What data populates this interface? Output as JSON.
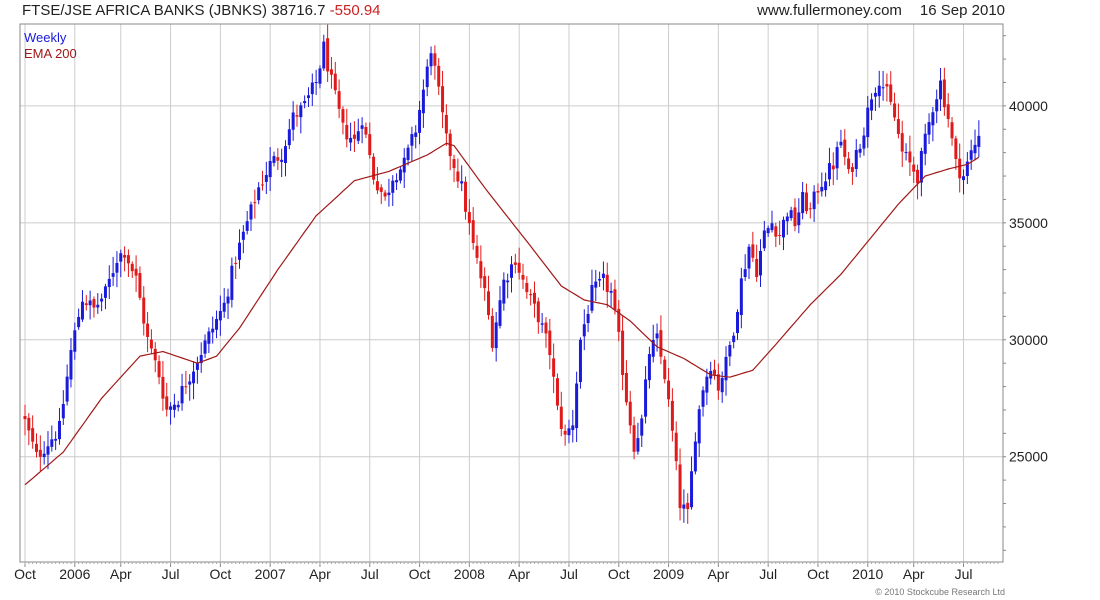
{
  "header": {
    "title": "FTSE/JSE AFRICA BANKS (JBNKS)",
    "last_value": "38716.7",
    "change": "-550.94",
    "site": "www.fullermoney.com",
    "date": "16 Sep 2010"
  },
  "copyright": "© 2010 Stockcube Research Ltd",
  "colors": {
    "up": "#1a1adb",
    "down": "#e01a1a",
    "ema": "#a01818",
    "grid": "#cccccc",
    "frame": "#888888",
    "legend_weekly": "#1a1adb",
    "legend_ema": "#a01818"
  },
  "chart_data": {
    "type": "candlestick",
    "frequency": "Weekly",
    "y_axis_position": "right",
    "ylim": [
      20500,
      43500
    ],
    "yticks": [
      25000,
      30000,
      35000,
      40000
    ],
    "ytick_labels": [
      "25000",
      "30000",
      "35000",
      "40000"
    ],
    "x_range_weeks": [
      0,
      254
    ],
    "xticks": [
      {
        "label": "Oct",
        "week": 0
      },
      {
        "label": "2006",
        "week": 13
      },
      {
        "label": "Apr",
        "week": 25
      },
      {
        "label": "Jul",
        "week": 38
      },
      {
        "label": "Oct",
        "week": 51
      },
      {
        "label": "2007",
        "week": 64
      },
      {
        "label": "Apr",
        "week": 77
      },
      {
        "label": "Jul",
        "week": 90
      },
      {
        "label": "Oct",
        "week": 103
      },
      {
        "label": "2008",
        "week": 116
      },
      {
        "label": "Apr",
        "week": 129
      },
      {
        "label": "Jul",
        "week": 142
      },
      {
        "label": "Oct",
        "week": 155
      },
      {
        "label": "2009",
        "week": 168
      },
      {
        "label": "Apr",
        "week": 181
      },
      {
        "label": "Jul",
        "week": 194
      },
      {
        "label": "Oct",
        "week": 207
      },
      {
        "label": "2010",
        "week": 220
      },
      {
        "label": "Apr",
        "week": 232
      },
      {
        "label": "Jul",
        "week": 245
      }
    ],
    "legend": [
      "Weekly",
      "EMA 200"
    ],
    "legend_position": "top-left",
    "grid": true,
    "close_anchors": [
      [
        0,
        26500
      ],
      [
        3,
        25000
      ],
      [
        6,
        25600
      ],
      [
        9,
        26200
      ],
      [
        12,
        29500
      ],
      [
        15,
        31800
      ],
      [
        18,
        31300
      ],
      [
        21,
        32000
      ],
      [
        24,
        33500
      ],
      [
        26,
        33800
      ],
      [
        29,
        32600
      ],
      [
        32,
        30000
      ],
      [
        35,
        28500
      ],
      [
        37,
        27000
      ],
      [
        40,
        27500
      ],
      [
        43,
        28500
      ],
      [
        46,
        29500
      ],
      [
        49,
        30500
      ],
      [
        52,
        31500
      ],
      [
        55,
        33500
      ],
      [
        58,
        35000
      ],
      [
        61,
        36500
      ],
      [
        64,
        37500
      ],
      [
        67,
        38000
      ],
      [
        70,
        39500
      ],
      [
        73,
        40000
      ],
      [
        76,
        41000
      ],
      [
        78,
        42500
      ],
      [
        80,
        41000
      ],
      [
        83,
        39000
      ],
      [
        86,
        38500
      ],
      [
        88,
        39500
      ],
      [
        91,
        37000
      ],
      [
        94,
        36000
      ],
      [
        96,
        37000
      ],
      [
        99,
        37500
      ],
      [
        102,
        39000
      ],
      [
        105,
        41500
      ],
      [
        106,
        42500
      ],
      [
        108,
        40500
      ],
      [
        110,
        38500
      ],
      [
        112,
        37500
      ],
      [
        114,
        36500
      ],
      [
        117,
        34000
      ],
      [
        120,
        32000
      ],
      [
        122,
        30000
      ],
      [
        125,
        32500
      ],
      [
        128,
        33500
      ],
      [
        131,
        32000
      ],
      [
        134,
        31000
      ],
      [
        137,
        29500
      ],
      [
        139,
        27000
      ],
      [
        141,
        25800
      ],
      [
        143,
        26500
      ],
      [
        145,
        30000
      ],
      [
        148,
        32000
      ],
      [
        151,
        32500
      ],
      [
        153,
        32000
      ],
      [
        155,
        30000
      ],
      [
        157,
        27500
      ],
      [
        159,
        25500
      ],
      [
        161,
        26500
      ],
      [
        163,
        29500
      ],
      [
        165,
        30000
      ],
      [
        167,
        28500
      ],
      [
        169,
        26000
      ],
      [
        171,
        23000
      ],
      [
        173,
        22500
      ],
      [
        175,
        26000
      ],
      [
        177,
        28000
      ],
      [
        179,
        29000
      ],
      [
        181,
        28000
      ],
      [
        183,
        29000
      ],
      [
        185,
        30500
      ],
      [
        187,
        32500
      ],
      [
        189,
        34000
      ],
      [
        191,
        33000
      ],
      [
        193,
        34500
      ],
      [
        195,
        35000
      ],
      [
        197,
        34500
      ],
      [
        199,
        35500
      ],
      [
        201,
        35000
      ],
      [
        203,
        36000
      ],
      [
        205,
        35500
      ],
      [
        207,
        36500
      ],
      [
        209,
        37000
      ],
      [
        211,
        37500
      ],
      [
        213,
        38500
      ],
      [
        215,
        37000
      ],
      [
        217,
        38000
      ],
      [
        219,
        39000
      ],
      [
        221,
        40500
      ],
      [
        223,
        41200
      ],
      [
        225,
        40500
      ],
      [
        227,
        39500
      ],
      [
        229,
        38000
      ],
      [
        231,
        37500
      ],
      [
        233,
        37000
      ],
      [
        235,
        38500
      ],
      [
        237,
        40000
      ],
      [
        239,
        41000
      ],
      [
        241,
        39500
      ],
      [
        243,
        37500
      ],
      [
        245,
        37000
      ],
      [
        247,
        38000
      ],
      [
        249,
        38716.7
      ]
    ],
    "ema200_anchors": [
      [
        0,
        23800
      ],
      [
        10,
        25200
      ],
      [
        20,
        27500
      ],
      [
        30,
        29300
      ],
      [
        36,
        29500
      ],
      [
        45,
        29000
      ],
      [
        50,
        29300
      ],
      [
        56,
        30500
      ],
      [
        66,
        33000
      ],
      [
        76,
        35300
      ],
      [
        86,
        36800
      ],
      [
        95,
        37200
      ],
      [
        105,
        37900
      ],
      [
        110,
        38400
      ],
      [
        112,
        38300
      ],
      [
        120,
        36500
      ],
      [
        132,
        34000
      ],
      [
        140,
        32300
      ],
      [
        146,
        31700
      ],
      [
        152,
        31500
      ],
      [
        158,
        30800
      ],
      [
        165,
        29700
      ],
      [
        172,
        29200
      ],
      [
        179,
        28500
      ],
      [
        184,
        28400
      ],
      [
        190,
        28700
      ],
      [
        196,
        29800
      ],
      [
        205,
        31500
      ],
      [
        213,
        32800
      ],
      [
        220,
        34200
      ],
      [
        228,
        35800
      ],
      [
        235,
        37000
      ],
      [
        241,
        37300
      ],
      [
        246,
        37500
      ],
      [
        249,
        37800
      ]
    ],
    "last_value": 38716.7,
    "change": -550.94
  }
}
